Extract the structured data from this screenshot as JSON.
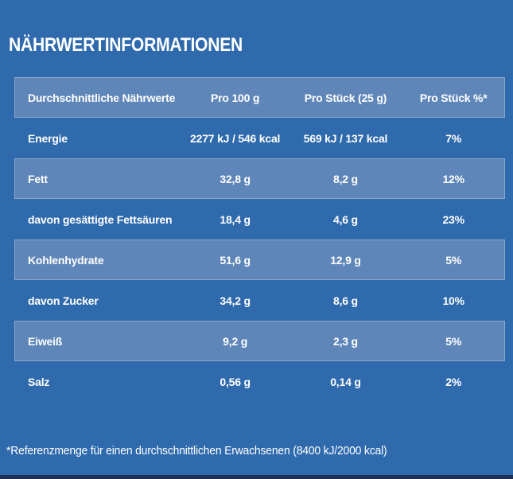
{
  "page": {
    "title": "NÄHRWERTINFORMATIONEN",
    "footnote": "*Referenzmenge für einen durchschnittlichen Erwachsenen (8400 kJ/2000 kcal)"
  },
  "colors": {
    "background": "#2f6aad",
    "row_band": "#5f86b9",
    "row_band_border": "#8aa6cb",
    "bottom_bar": "#1d2f52",
    "text": "#ffffff"
  },
  "table": {
    "headers": [
      "Durchschnittliche Nährwerte",
      "Pro 100 g",
      "Pro Stück (25 g)",
      "Pro Stück %*"
    ],
    "rows": [
      {
        "label": "Energie",
        "per_100g": "2277 kJ / 546 kcal",
        "per_piece": "569 kJ / 137 kcal",
        "percent": "7%"
      },
      {
        "label": "Fett",
        "per_100g": "32,8 g",
        "per_piece": "8,2 g",
        "percent": "12%"
      },
      {
        "label": "davon gesättigte Fettsäuren",
        "per_100g": "18,4 g",
        "per_piece": "4,6 g",
        "percent": "23%"
      },
      {
        "label": "Kohlenhydrate",
        "per_100g": "51,6 g",
        "per_piece": "12,9 g",
        "percent": "5%"
      },
      {
        "label": "davon Zucker",
        "per_100g": "34,2 g",
        "per_piece": "8,6 g",
        "percent": "10%"
      },
      {
        "label": "Eiweiß",
        "per_100g": "9,2 g",
        "per_piece": "2,3 g",
        "percent": "5%"
      },
      {
        "label": "Salz",
        "per_100g": "0,56 g",
        "per_piece": "0,14 g",
        "percent": "2%"
      }
    ]
  }
}
